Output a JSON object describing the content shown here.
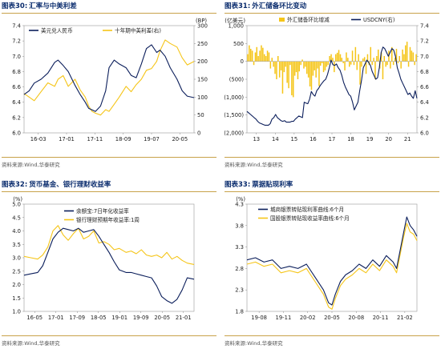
{
  "colors": {
    "navy": "#0b1e5b",
    "gold": "#f5c518",
    "title": "#0b2d6e",
    "rule": "#c8a24a"
  },
  "charts": [
    {
      "id": "c30",
      "fig_no": "图表30:",
      "title_text": "汇率与中美利差",
      "source": "资料来源:Wind,华泰研究",
      "chart_data": {
        "type": "line",
        "legend": [
          "美元兑人民币",
          "十年期中美利差(右)"
        ],
        "ylabel_right": "(BP)",
        "x_ticks": [
          "16-03",
          "17-01",
          "17-11",
          "18-09",
          "19-07",
          "20-05"
        ],
        "y_left": {
          "min": 6.0,
          "max": 7.4,
          "ticks": [
            "7.4",
            "7.2",
            "7.0",
            "6.8",
            "6.6",
            "6.4",
            "6.2",
            "6.0"
          ]
        },
        "y_right": {
          "min": 0,
          "max": 300,
          "ticks": [
            "300",
            "250",
            "200",
            "150",
            "100",
            "50",
            "0"
          ]
        },
        "series": [
          {
            "name": "美元兑人民币",
            "axis": "left",
            "color": "#0b1e5b",
            "t": [
              0,
              0.03,
              0.06,
              0.1,
              0.14,
              0.18,
              0.2,
              0.23,
              0.26,
              0.3,
              0.33,
              0.36,
              0.38,
              0.4,
              0.42,
              0.45,
              0.48,
              0.5,
              0.53,
              0.56,
              0.6,
              0.63,
              0.66,
              0.69,
              0.72,
              0.75,
              0.78,
              0.8,
              0.83,
              0.86,
              0.9,
              0.93,
              0.96,
              1.0
            ],
            "v": [
              6.5,
              6.55,
              6.65,
              6.7,
              6.78,
              6.92,
              6.95,
              6.88,
              6.8,
              6.62,
              6.5,
              6.4,
              6.32,
              6.3,
              6.28,
              6.35,
              6.55,
              6.85,
              6.95,
              6.9,
              6.85,
              6.75,
              6.72,
              6.9,
              7.1,
              7.15,
              7.05,
              7.08,
              7.0,
              6.85,
              6.7,
              6.55,
              6.48,
              6.46
            ]
          },
          {
            "name": "十年期中美利差(右)",
            "axis": "right",
            "color": "#f5c518",
            "t": [
              0,
              0.03,
              0.06,
              0.1,
              0.14,
              0.18,
              0.2,
              0.23,
              0.26,
              0.3,
              0.33,
              0.36,
              0.38,
              0.4,
              0.42,
              0.45,
              0.48,
              0.5,
              0.53,
              0.56,
              0.6,
              0.63,
              0.66,
              0.69,
              0.72,
              0.75,
              0.78,
              0.8,
              0.83,
              0.86,
              0.9,
              0.93,
              0.96,
              1.0
            ],
            "v": [
              110,
              100,
              90,
              115,
              140,
              130,
              150,
              160,
              130,
              150,
              120,
              100,
              75,
              60,
              55,
              50,
              65,
              60,
              80,
              100,
              130,
              115,
              135,
              150,
              175,
              180,
              200,
              230,
              260,
              250,
              240,
              210,
              190,
              200
            ]
          }
        ]
      }
    },
    {
      "id": "c31",
      "fig_no": "图表31:",
      "title_text": "外汇储备环比变动",
      "source": "资料来源:Wind,华泰研究",
      "chart_data": {
        "type": "bar+line",
        "legend": [
          "外汇储备环比增减",
          "USDCNY(右)"
        ],
        "ylabel_left": "(亿美元)",
        "x_ticks": [
          "13",
          "14",
          "15",
          "16",
          "17",
          "18",
          "19",
          "20",
          "21"
        ],
        "y_left": {
          "min": -2000,
          "max": 1000,
          "ticks": [
            "1,000",
            "500",
            "0",
            "(500)",
            "(1,000)",
            "(1,500)",
            "(2,000)"
          ]
        },
        "y_right": {
          "min": 6.0,
          "max": 7.4,
          "ticks": [
            "7.4",
            "7.2",
            "7.0",
            "6.8",
            "6.6",
            "6.4",
            "6.2",
            "6.0"
          ]
        },
        "series": [
          {
            "name": "外汇储备环比增减",
            "axis": "left",
            "color": "#f5c518",
            "type": "bar",
            "v": [
              200,
              450,
              350,
              300,
              -100,
              250,
              400,
              150,
              300,
              450,
              380,
              200,
              150,
              300,
              250,
              -200,
              100,
              -150,
              -350,
              -500,
              150,
              -450,
              -250,
              -900,
              -300,
              -150,
              -600,
              -750,
              -100,
              -950,
              -1000,
              -400,
              -300,
              -500,
              -280,
              -100,
              50,
              -200,
              -150,
              -350,
              -450,
              -700,
              -800,
              -400,
              -250,
              -450,
              -200,
              -690,
              -120,
              -50,
              -300,
              -250,
              -150,
              -100,
              150,
              200,
              100,
              -300,
              200,
              240,
              320,
              200,
              100,
              -50,
              -250,
              250,
              100,
              -150,
              -90,
              300,
              -100,
              400,
              -240,
              200,
              -650,
              -150,
              80,
              120,
              -350,
              200,
              -100,
              400,
              -100,
              100,
              -500,
              150,
              330,
              -200,
              250,
              -500,
              150,
              -150,
              -100,
              300,
              -200,
              400,
              -100,
              100,
              350,
              -50,
              150,
              -200,
              330,
              200,
              450,
              550,
              -150,
              400,
              300,
              250,
              -100,
              200
            ]
          },
          {
            "name": "USDCNY(右)",
            "axis": "right",
            "color": "#0b1e5b",
            "type": "line",
            "v": [
              6.28,
              6.26,
              6.24,
              6.22,
              6.2,
              6.18,
              6.15,
              6.13,
              6.12,
              6.11,
              6.1,
              6.1,
              6.1,
              6.12,
              6.18,
              6.2,
              6.24,
              6.2,
              6.18,
              6.16,
              6.15,
              6.16,
              6.14,
              6.14,
              6.14,
              6.15,
              6.15,
              6.18,
              6.2,
              6.22,
              6.21,
              6.2,
              6.4,
              6.39,
              6.38,
              6.44,
              6.54,
              6.5,
              6.48,
              6.55,
              6.58,
              6.62,
              6.65,
              6.68,
              6.7,
              6.76,
              6.85,
              6.95,
              6.89,
              6.88,
              6.9,
              6.85,
              6.82,
              6.75,
              6.66,
              6.6,
              6.55,
              6.5,
              6.48,
              6.4,
              6.3,
              6.35,
              6.4,
              6.55,
              6.68,
              6.85,
              6.9,
              6.95,
              6.92,
              6.88,
              6.8,
              6.75,
              6.7,
              6.72,
              6.85,
              7.05,
              7.12,
              7.1,
              7.05,
              7.0,
              7.05,
              7.1,
              7.08,
              7.0,
              6.85,
              6.78,
              6.7,
              6.65,
              6.6,
              6.55,
              6.5,
              6.52,
              6.48,
              6.45,
              6.55,
              6.45
            ]
          }
        ]
      }
    },
    {
      "id": "c32",
      "fig_no": "图表32:",
      "title_text": "货币基金、银行理财收益率",
      "source": "资料来源:Wind,华泰研究",
      "chart_data": {
        "type": "line",
        "legend": [
          "余额宝:7日年化收益率",
          "银行理财预期年收益率:1周"
        ],
        "ylabel_left": "(%)",
        "x_ticks": [
          "16-05",
          "17-01",
          "17-09",
          "18-05",
          "19-01",
          "19-09",
          "20-05",
          "21-01"
        ],
        "y_left": {
          "min": 1.0,
          "max": 5.0,
          "ticks": [
            "5.0",
            "4.5",
            "4.0",
            "3.5",
            "3.0",
            "2.5",
            "2.0",
            "1.5",
            "1.0"
          ]
        },
        "series": [
          {
            "name": "余额宝:7日年化收益率",
            "axis": "left",
            "color": "#0b1e5b",
            "t": [
              0,
              0.04,
              0.08,
              0.11,
              0.14,
              0.17,
              0.2,
              0.23,
              0.26,
              0.29,
              0.32,
              0.35,
              0.38,
              0.41,
              0.44,
              0.47,
              0.5,
              0.53,
              0.56,
              0.6,
              0.63,
              0.66,
              0.69,
              0.72,
              0.75,
              0.78,
              0.81,
              0.84,
              0.87,
              0.9,
              0.93,
              0.96,
              1.0
            ],
            "v": [
              2.35,
              2.4,
              2.45,
              2.7,
              3.2,
              3.7,
              3.95,
              4.1,
              4.05,
              4.0,
              4.1,
              3.95,
              4.0,
              4.05,
              3.8,
              3.5,
              3.2,
              2.85,
              2.55,
              2.45,
              2.45,
              2.4,
              2.35,
              2.3,
              2.25,
              1.95,
              1.55,
              1.4,
              1.3,
              1.45,
              1.8,
              2.25,
              2.2
            ]
          },
          {
            "name": "银行理财预期年收益率:1周",
            "axis": "left",
            "color": "#f5c518",
            "t": [
              0,
              0.04,
              0.08,
              0.11,
              0.14,
              0.17,
              0.2,
              0.23,
              0.26,
              0.29,
              0.32,
              0.35,
              0.38,
              0.41,
              0.44,
              0.47,
              0.5,
              0.53,
              0.56,
              0.6,
              0.63,
              0.66,
              0.69,
              0.72,
              0.75,
              0.78,
              0.81,
              0.84,
              0.87,
              0.9,
              0.93,
              0.96,
              1.0
            ],
            "v": [
              3.05,
              3.0,
              2.95,
              3.1,
              3.4,
              4.0,
              4.2,
              3.85,
              3.65,
              3.9,
              4.1,
              3.7,
              3.8,
              4.0,
              3.55,
              3.6,
              3.5,
              3.3,
              3.35,
              3.2,
              3.25,
              3.15,
              3.3,
              3.1,
              3.05,
              3.1,
              3.0,
              3.2,
              2.95,
              3.05,
              2.9,
              2.8,
              2.75
            ]
          }
        ]
      }
    },
    {
      "id": "c33",
      "fig_no": "图表33:",
      "title_text": "票据贴现利率",
      "source": "资料来源:Wind,华泰研究",
      "chart_data": {
        "type": "line",
        "legend": [
          "城商银票转贴现利率曲线:6个月",
          "国股银票转贴现收益率曲线:6个月"
        ],
        "ylabel_left": "(%)",
        "x_ticks": [
          "19-08",
          "19-11",
          "20-02",
          "20-05",
          "20-08",
          "20-11",
          "21-02"
        ],
        "y_left": {
          "min": 1.8,
          "max": 4.3,
          "ticks": [
            "4.3",
            "3.8",
            "3.3",
            "2.8",
            "2.3",
            "1.8"
          ]
        },
        "series": [
          {
            "name": "城商银票转贴现利率曲线:6个月",
            "axis": "left",
            "color": "#0b1e5b",
            "t": [
              0,
              0.05,
              0.1,
              0.15,
              0.2,
              0.25,
              0.3,
              0.35,
              0.4,
              0.45,
              0.48,
              0.5,
              0.52,
              0.55,
              0.58,
              0.62,
              0.66,
              0.7,
              0.74,
              0.78,
              0.82,
              0.86,
              0.88,
              0.9,
              0.92,
              0.94,
              0.96,
              0.98,
              1.0
            ],
            "v": [
              3.0,
              3.05,
              2.95,
              3.0,
              2.8,
              2.85,
              2.8,
              2.9,
              2.6,
              2.3,
              2.0,
              1.95,
              2.2,
              2.5,
              2.65,
              2.75,
              2.9,
              2.8,
              3.0,
              2.85,
              3.1,
              2.95,
              2.8,
              3.2,
              3.6,
              4.0,
              3.8,
              3.7,
              3.55
            ]
          },
          {
            "name": "国股银票转贴现收益率曲线:6个月",
            "axis": "left",
            "color": "#f5c518",
            "t": [
              0,
              0.05,
              0.1,
              0.15,
              0.2,
              0.25,
              0.3,
              0.35,
              0.4,
              0.45,
              0.48,
              0.5,
              0.52,
              0.55,
              0.58,
              0.62,
              0.66,
              0.7,
              0.74,
              0.78,
              0.82,
              0.86,
              0.88,
              0.9,
              0.92,
              0.94,
              0.96,
              0.98,
              1.0
            ],
            "v": [
              2.9,
              2.95,
              2.85,
              2.9,
              2.7,
              2.75,
              2.7,
              2.8,
              2.5,
              2.2,
              1.9,
              1.85,
              2.1,
              2.4,
              2.55,
              2.65,
              2.8,
              2.7,
              2.9,
              2.75,
              3.0,
              2.85,
              2.7,
              3.1,
              3.5,
              3.85,
              3.65,
              3.6,
              3.45
            ]
          }
        ]
      }
    }
  ]
}
